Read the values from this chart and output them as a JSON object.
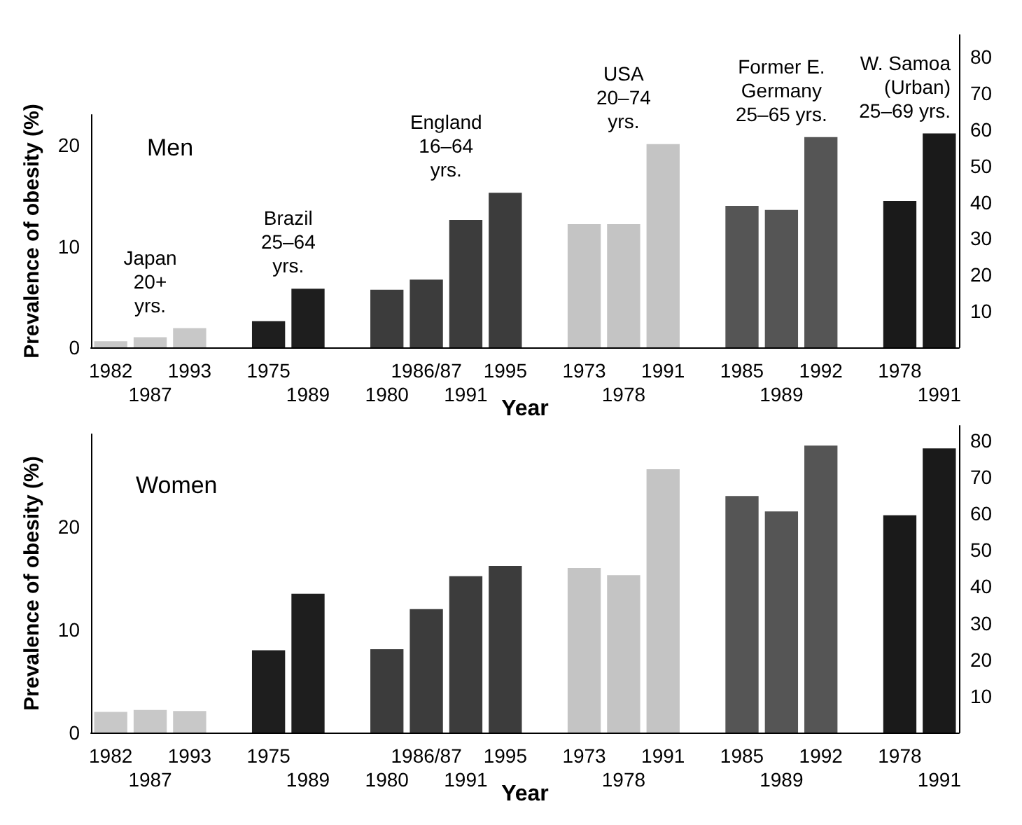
{
  "chart_data": [
    {
      "type": "bar",
      "title": "Men",
      "xlabel": "Year",
      "ylabel": "Prevalence of obesity (%)",
      "categories": [
        "1982",
        "1987",
        "1993",
        null,
        "1975",
        "1989",
        null,
        "1980",
        "1986/87",
        "1991",
        "1995",
        null,
        "1973",
        "1978",
        "1991",
        null,
        "1985",
        "1989",
        "1992",
        null,
        "1978",
        "1991"
      ],
      "series": [
        {
          "values": [
            0.6,
            1.0,
            1.9,
            null,
            2.6,
            5.8,
            null,
            5.7,
            6.7,
            12.6,
            15.3,
            null,
            12.2,
            12.2,
            20.1,
            null,
            14.0,
            13.6,
            20.8,
            null,
            null,
            null
          ],
          "colors": [
            "#c8c8c8",
            "#c8c8c8",
            "#c8c8c8",
            null,
            "#1e1e1e",
            "#1e1e1e",
            null,
            "#3c3c3c",
            "#3c3c3c",
            "#3c3c3c",
            "#3c3c3c",
            null,
            "#c4c4c4",
            "#c4c4c4",
            "#c4c4c4",
            null,
            "#555555",
            "#555555",
            "#555555",
            null,
            null,
            null
          ]
        },
        {
          "axis": "y2",
          "values": [
            null,
            null,
            null,
            null,
            null,
            null,
            null,
            null,
            null,
            null,
            null,
            null,
            null,
            null,
            null,
            null,
            null,
            null,
            null,
            null,
            40.3,
            58.9
          ],
          "colors": [
            null,
            null,
            null,
            null,
            null,
            null,
            null,
            null,
            null,
            null,
            null,
            null,
            null,
            null,
            null,
            null,
            null,
            null,
            null,
            null,
            "#1a1a1a",
            "#1a1a1a"
          ]
        }
      ],
      "ylim": [
        0,
        23
      ],
      "yticks": [
        0,
        10,
        20
      ],
      "y2lim": [
        0,
        86
      ],
      "y2ticks": [
        10,
        20,
        30,
        40,
        50,
        60,
        70,
        80
      ],
      "annotations": [
        "Japan\n20+\nyrs.",
        "Brazil\n25–64\nyrs.",
        "England\n16–64\nyrs.",
        "USA\n20–74\nyrs.",
        "Former E.\nGermany\n25–65 yrs.",
        "W. Samoa\n(Urban)\n25–69 yrs."
      ]
    },
    {
      "type": "bar",
      "title": "Women",
      "xlabel": "Year",
      "ylabel": "Prevalence of obesity (%)",
      "categories": [
        "1982",
        "1987",
        "1993",
        null,
        "1975",
        "1989",
        null,
        "1980",
        "1986/87",
        "1991",
        "1995",
        null,
        "1973",
        "1978",
        "1991",
        null,
        "1985",
        "1989",
        "1992",
        null,
        "1978",
        "1991"
      ],
      "series": [
        {
          "values": [
            2.0,
            2.2,
            2.1,
            null,
            8.0,
            13.5,
            null,
            8.1,
            12.0,
            15.2,
            16.2,
            null,
            16.0,
            15.3,
            25.6,
            null,
            23.0,
            21.5,
            27.9,
            null,
            null,
            null
          ],
          "colors": [
            "#c8c8c8",
            "#c8c8c8",
            "#c8c8c8",
            null,
            "#1e1e1e",
            "#1e1e1e",
            null,
            "#3c3c3c",
            "#3c3c3c",
            "#3c3c3c",
            "#3c3c3c",
            null,
            "#c4c4c4",
            "#c4c4c4",
            "#c4c4c4",
            null,
            "#555555",
            "#555555",
            "#555555",
            null,
            null,
            null
          ]
        },
        {
          "axis": "y2",
          "values": [
            null,
            null,
            null,
            null,
            null,
            null,
            null,
            null,
            null,
            null,
            null,
            null,
            null,
            null,
            null,
            null,
            null,
            null,
            null,
            null,
            59.5,
            77.8
          ],
          "colors": [
            null,
            null,
            null,
            null,
            null,
            null,
            null,
            null,
            null,
            null,
            null,
            null,
            null,
            null,
            null,
            null,
            null,
            null,
            null,
            null,
            "#1a1a1a",
            "#1a1a1a"
          ]
        }
      ],
      "ylim": [
        0,
        29
      ],
      "yticks": [
        0,
        10,
        20
      ],
      "y2lim": [
        0,
        84
      ],
      "y2ticks": [
        10,
        20,
        30,
        40,
        50,
        60,
        70,
        80
      ]
    }
  ]
}
